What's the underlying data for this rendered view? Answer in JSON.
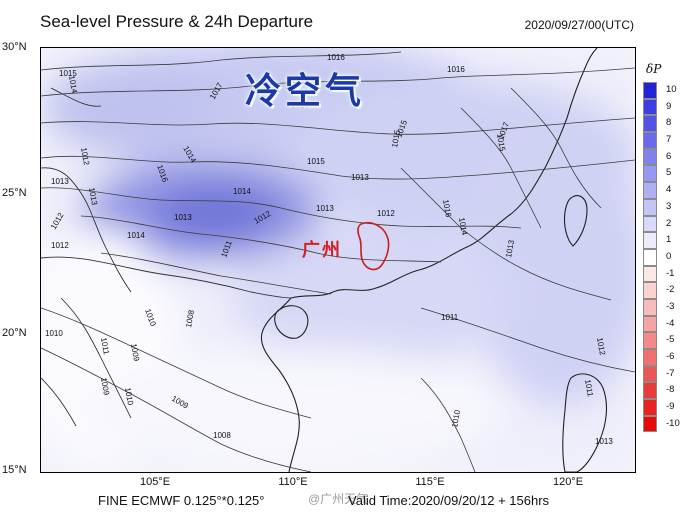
{
  "header": {
    "title": "Sea-level Pressure & 24h Departure",
    "datetime": "2020/09/27/00(UTC)"
  },
  "footer": {
    "model": "FINE ECMWF 0.125°*0.125°",
    "valid_time": "Valid Time:2020/09/20/12 + 156hrs",
    "watermark": "@广州天气"
  },
  "banner": {
    "text": "冷空气"
  },
  "city": {
    "name": "广州"
  },
  "map": {
    "lat_labels": [
      "30°N",
      "25°N",
      "20°N",
      "15°N"
    ],
    "lon_labels": [
      "105°E",
      "110°E",
      "115°E",
      "120°E"
    ],
    "isobar_labels": [
      "1015",
      "1016",
      "1017",
      "1016",
      "1016",
      "1015",
      "1016",
      "1013",
      "1014",
      "1015",
      "1012",
      "1013",
      "1014",
      "1013",
      "1012",
      "1011",
      "1014",
      "1013",
      "1012",
      "1010",
      "1009",
      "1010",
      "1011",
      "1008",
      "1010",
      "1009",
      "1013",
      "1015",
      "1016",
      "1017",
      "1014",
      "1013",
      "1012",
      "1011",
      "1012",
      "1010",
      "1008",
      "1009",
      "1011",
      "1012",
      "1013",
      "1014",
      "1015"
    ]
  },
  "legend": {
    "title": "δP",
    "levels": [
      "10",
      "9",
      "8",
      "7",
      "6",
      "5",
      "4",
      "3",
      "2",
      "1",
      "0",
      "-1",
      "-2",
      "-3",
      "-4",
      "-5",
      "-6",
      "-7",
      "-8",
      "-9",
      "-10"
    ],
    "colors": [
      "#2323d6",
      "#3d3de2",
      "#5252e6",
      "#6a6aea",
      "#8181ee",
      "#9898f2",
      "#afaff6",
      "#c4c4f8",
      "#d8d8fb",
      "#ececfd",
      "#ffffff",
      "#fde8e8",
      "#fbd2d2",
      "#f9bcbc",
      "#f6a3a3",
      "#f38a8a",
      "#f07070",
      "#ed5656",
      "#ea3b3b",
      "#e82222",
      "#e50a0a"
    ]
  }
}
